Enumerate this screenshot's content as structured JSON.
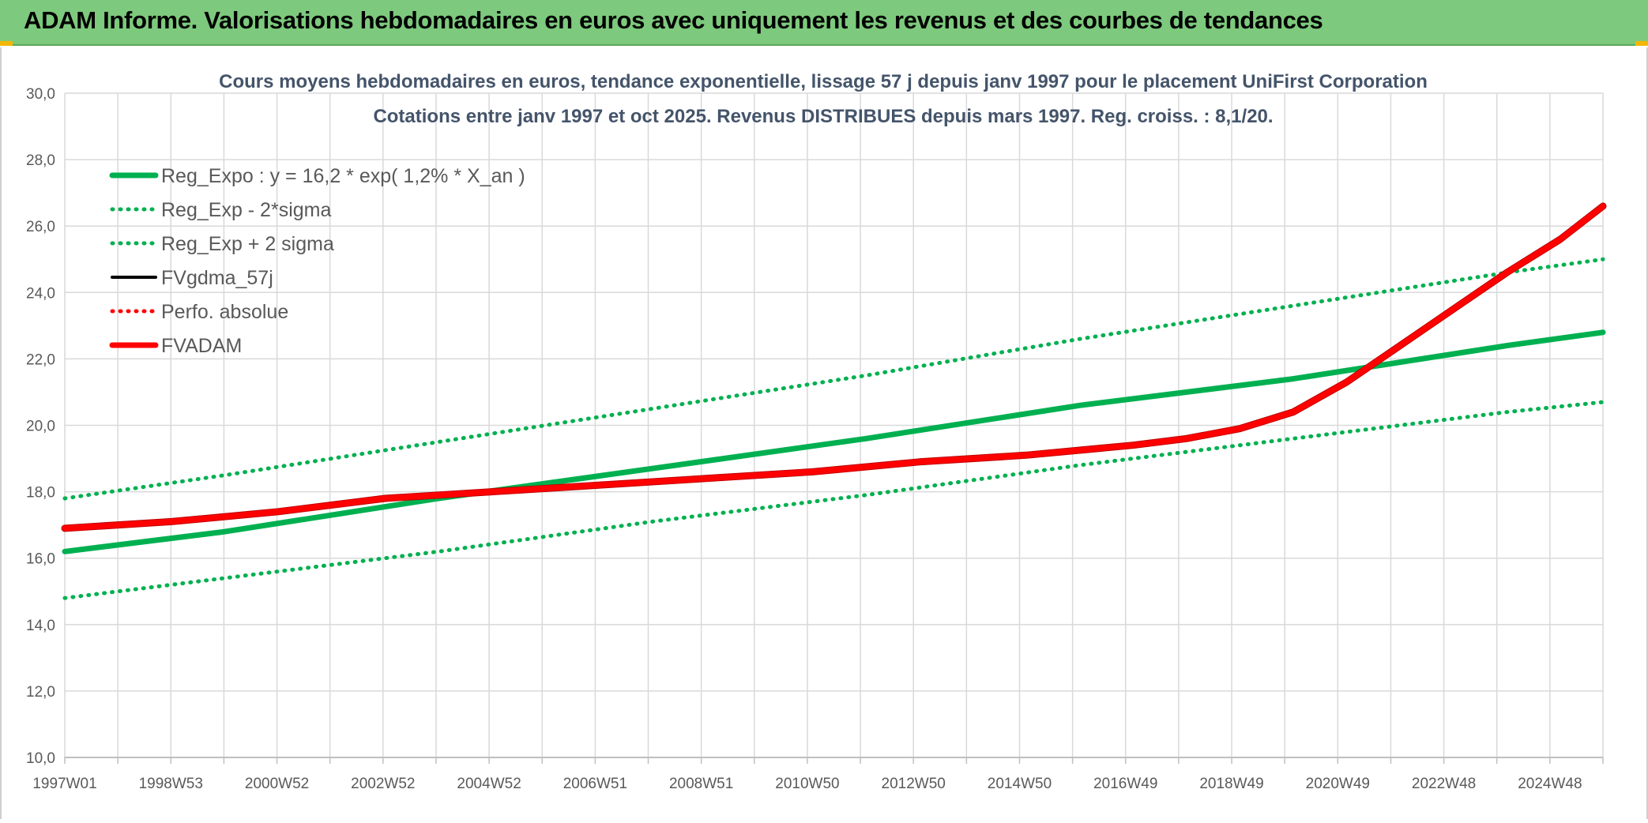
{
  "banner": {
    "title": "ADAM Informe. Valorisations hebdomadaires en euros avec uniquement les revenus et des courbes de tendances"
  },
  "colors": {
    "banner_bg": "#7dc97d",
    "green": "#00b050",
    "red": "#ff0000",
    "dark_red": "#c00000",
    "black": "#000000",
    "grid": "#d9d9d9"
  },
  "chart_data": {
    "type": "line",
    "title_lines": [
      "Cours moyens hebdomadaires en euros, tendance exponentielle, lissage 57 j depuis janv 1997 pour le placement UniFirst Corporation",
      "Cotations entre janv 1997 et oct 2025. Revenus DISTRIBUES depuis mars 1997. Reg. croiss. : 8,1/20."
    ],
    "x_tick_labels": [
      "1997W01",
      "1998W53",
      "2000W52",
      "2002W52",
      "2004W52",
      "2006W51",
      "2008W51",
      "2010W50",
      "2012W50",
      "2014W50",
      "2016W49",
      "2018W49",
      "2020W49",
      "2022W48",
      "2024W48"
    ],
    "x_range_years": [
      1997.0,
      2025.8
    ],
    "ylim": [
      10,
      30
    ],
    "y_ticks": [
      "10,0",
      "12,0",
      "14,0",
      "16,0",
      "18,0",
      "20,0",
      "22,0",
      "24,0",
      "26,0",
      "28,0",
      "30,0"
    ],
    "grid": true,
    "legend_position": "top-left",
    "legend": [
      {
        "name": "Reg_Expo : y = 16,2 * exp( 1,2% *  X_an )",
        "style": "solid-thick",
        "color": "#00b050"
      },
      {
        "name": "Reg_Exp - 2*sigma",
        "style": "dotted",
        "color": "#00b050"
      },
      {
        "name": "Reg_Exp + 2 sigma",
        "style": "dotted",
        "color": "#00b050"
      },
      {
        "name": "FVgdma_57j",
        "style": "solid",
        "color": "#000000"
      },
      {
        "name": "Perfo. absolue",
        "style": "dotted",
        "color": "#ff0000"
      },
      {
        "name": "FVADAM",
        "style": "solid-thick",
        "color": "#ff0000"
      }
    ],
    "series": [
      {
        "name": "Reg_Expo : y = 16,2 * exp( 1,2% *  X_an )",
        "style": "solid-thick",
        "color": "#00b050",
        "x": [
          1997.0,
          2000.0,
          2004.0,
          2008.0,
          2012.0,
          2016.0,
          2020.0,
          2024.0,
          2025.8
        ],
        "y": [
          16.2,
          16.8,
          17.8,
          18.7,
          19.6,
          20.6,
          21.4,
          22.4,
          22.8
        ]
      },
      {
        "name": "Reg_Exp - 2*sigma",
        "style": "dotted",
        "color": "#00b050",
        "x": [
          1997.0,
          2000.0,
          2004.0,
          2008.0,
          2012.0,
          2016.0,
          2020.0,
          2024.0,
          2025.8
        ],
        "y": [
          14.8,
          15.4,
          16.2,
          17.1,
          17.9,
          18.8,
          19.6,
          20.4,
          20.7
        ]
      },
      {
        "name": "Reg_Exp + 2 sigma",
        "style": "dotted",
        "color": "#00b050",
        "x": [
          1997.0,
          2000.0,
          2004.0,
          2008.0,
          2012.0,
          2016.0,
          2020.0,
          2024.0,
          2025.8
        ],
        "y": [
          17.8,
          18.5,
          19.5,
          20.5,
          21.5,
          22.6,
          23.6,
          24.6,
          25.0
        ]
      },
      {
        "name": "FVADAM",
        "style": "solid-thick",
        "color": "#ff0000",
        "x": [
          1997.0,
          1999.0,
          2001.0,
          2003.0,
          2005.0,
          2007.0,
          2009.0,
          2011.0,
          2013.0,
          2015.0,
          2017.0,
          2018.0,
          2019.0,
          2020.0,
          2021.0,
          2022.0,
          2023.0,
          2024.0,
          2025.0,
          2025.8
        ],
        "y": [
          16.9,
          17.1,
          17.4,
          17.8,
          18.0,
          18.2,
          18.4,
          18.6,
          18.9,
          19.1,
          19.4,
          19.6,
          19.9,
          20.4,
          21.3,
          22.4,
          23.5,
          24.6,
          25.6,
          26.6
        ]
      }
    ]
  }
}
